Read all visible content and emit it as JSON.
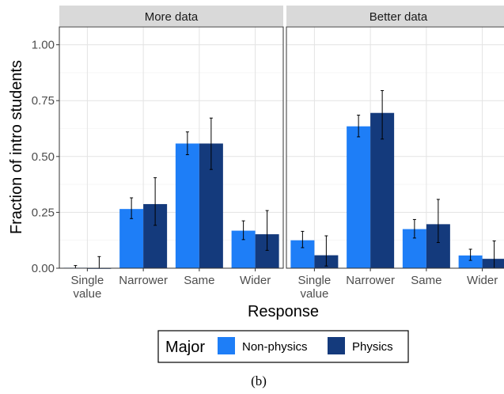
{
  "chart_data": {
    "type": "bar",
    "xlabel": "Response",
    "ylabel": "Fraction of intro students",
    "ylim": [
      0,
      1.08
    ],
    "yticks": [
      "0.00",
      "0.25",
      "0.50",
      "0.75",
      "1.00"
    ],
    "ytick_values": [
      0,
      0.25,
      0.5,
      0.75,
      1.0
    ],
    "categories": [
      [
        "Single",
        "value"
      ],
      [
        "Narrower"
      ],
      [
        "Same"
      ],
      [
        "Wider"
      ]
    ],
    "grid": true,
    "legend": {
      "title": "Major",
      "position": "bottom",
      "entries": [
        "Non-physics",
        "Physics"
      ]
    },
    "colors": {
      "Non-physics": "#1e7ef7",
      "Physics": "#143a7c"
    },
    "panels": [
      {
        "title": "More data",
        "series": [
          {
            "name": "Non-physics",
            "values": [
              0.002,
              0.265,
              0.558,
              0.168
            ],
            "err_low": [
              0.0,
              0.222,
              0.508,
              0.128
            ],
            "err_high": [
              0.012,
              0.315,
              0.61,
              0.212
            ]
          },
          {
            "name": "Physics",
            "values": [
              0.0,
              0.287,
              0.558,
              0.152
            ],
            "err_low": [
              0.0,
              0.192,
              0.442,
              0.08
            ],
            "err_high": [
              0.052,
              0.405,
              0.672,
              0.258
            ]
          }
        ]
      },
      {
        "title": "Better data",
        "series": [
          {
            "name": "Non-physics",
            "values": [
              0.125,
              0.635,
              0.175,
              0.057
            ],
            "err_low": [
              0.092,
              0.588,
              0.135,
              0.035
            ],
            "err_high": [
              0.165,
              0.685,
              0.218,
              0.085
            ]
          },
          {
            "name": "Physics",
            "values": [
              0.058,
              0.695,
              0.197,
              0.042
            ],
            "err_low": [
              0.01,
              0.578,
              0.115,
              0.0
            ],
            "err_high": [
              0.145,
              0.795,
              0.308,
              0.122
            ]
          }
        ]
      }
    ]
  },
  "caption": "(b)"
}
